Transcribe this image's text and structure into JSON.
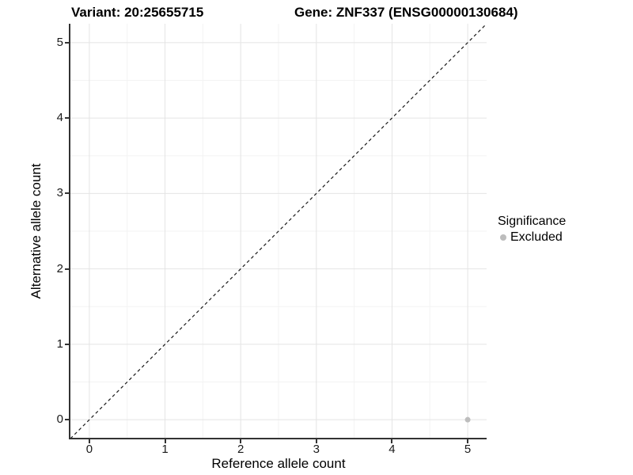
{
  "titles": {
    "variant": "Variant: 20:25655715",
    "gene": "Gene: ZNF337 (ENSG00000130684)"
  },
  "chart_data": {
    "type": "scatter",
    "title": "Variant: 20:25655715 — Gene: ZNF337 (ENSG00000130684)",
    "xlabel": "Reference allele count",
    "ylabel": "Alternative allele count",
    "xlim": [
      -0.25,
      5.25
    ],
    "ylim": [
      -0.25,
      5.25
    ],
    "x_ticks": [
      0,
      1,
      2,
      3,
      4,
      5
    ],
    "y_ticks": [
      0,
      1,
      2,
      3,
      4,
      5
    ],
    "x_minor_ticks": [
      0.5,
      1.5,
      2.5,
      3.5,
      4.5
    ],
    "y_minor_ticks": [
      0.5,
      1.5,
      2.5,
      3.5,
      4.5
    ],
    "grid": "major+minor",
    "series": [
      {
        "name": "Excluded",
        "color": "#bdbdbd",
        "points": [
          {
            "x": 5,
            "y": 0
          }
        ]
      }
    ],
    "reference_line": {
      "type": "identity",
      "style": "dashed",
      "from": [
        -0.25,
        -0.25
      ],
      "to": [
        5.25,
        5.25
      ],
      "color": "#1a1a1a"
    },
    "legend": {
      "title": "Significance",
      "position": "right",
      "entries": [
        {
          "label": "Excluded",
          "color": "#bdbdbd"
        }
      ]
    }
  },
  "colors": {
    "background": "#ffffff",
    "grid_major": "#e4e4e4",
    "grid_minor": "#f3f3f3",
    "axis": "#333333",
    "text": "#000000",
    "point": "#bdbdbd"
  }
}
